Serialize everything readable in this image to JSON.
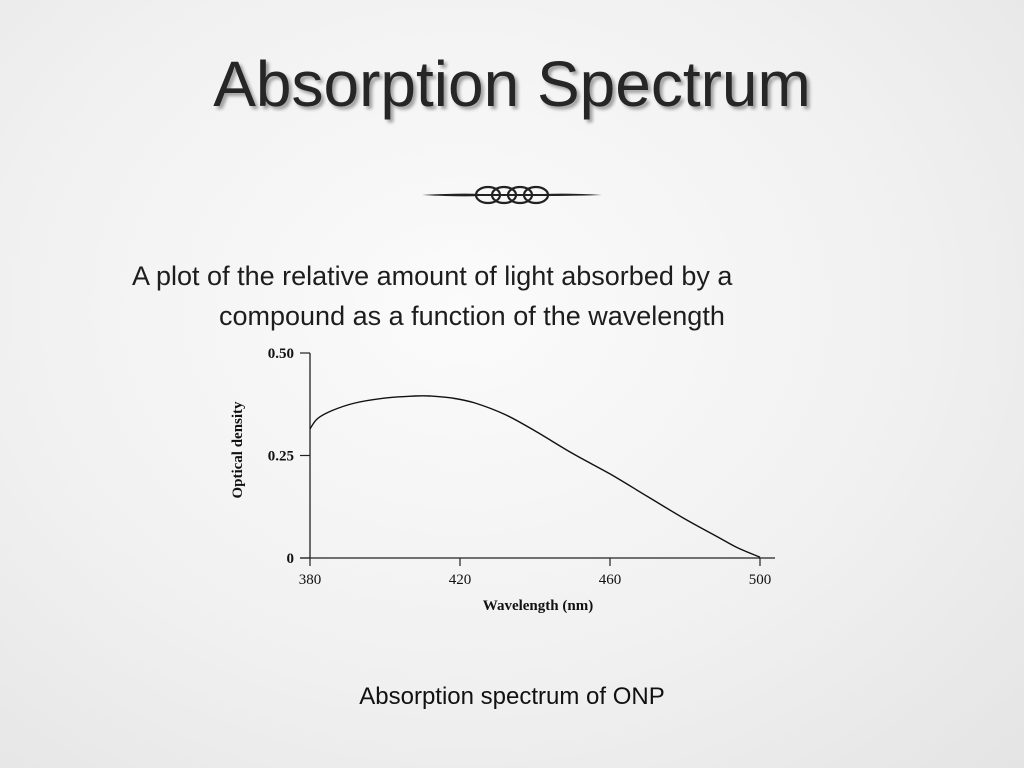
{
  "slide": {
    "title": "Absorption Spectrum",
    "body_line1": "A plot of the relative amount of light absorbed by a",
    "body_line2": "compound as a function of the wavelength",
    "caption": "Absorption spectrum of ONP",
    "ornament_icon": "flourish-divider-icon"
  },
  "chart_data": {
    "type": "line",
    "title": "",
    "xlabel": "Wavelength (nm)",
    "ylabel": "Optical density",
    "xlim": [
      380,
      500
    ],
    "ylim": [
      0,
      0.5
    ],
    "x_ticks": [
      380,
      420,
      460,
      500
    ],
    "x_tick_labels": [
      "380",
      "420",
      "460",
      "500"
    ],
    "y_ticks": [
      0,
      0.25,
      0.5
    ],
    "y_tick_labels": [
      "0",
      "0.25",
      "0.50"
    ],
    "grid": false,
    "series": [
      {
        "name": "",
        "x": [
          380,
          382,
          386,
          392,
          400,
          408,
          412,
          418,
          424,
          432,
          440,
          450,
          460,
          470,
          480,
          488,
          494,
          500
        ],
        "y": [
          0.315,
          0.34,
          0.36,
          0.378,
          0.39,
          0.395,
          0.395,
          0.39,
          0.378,
          0.35,
          0.31,
          0.255,
          0.205,
          0.15,
          0.095,
          0.055,
          0.025,
          0.002
        ],
        "color": "#111111"
      }
    ]
  }
}
